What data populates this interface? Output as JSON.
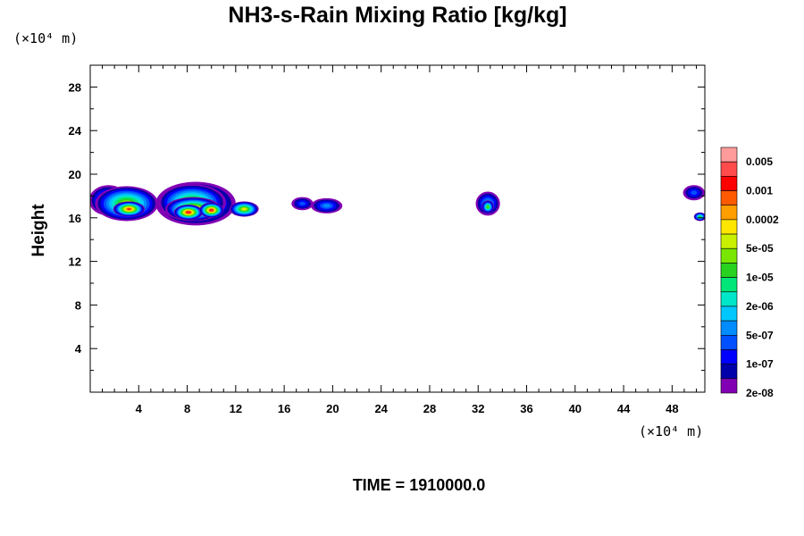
{
  "chart_data": {
    "type": "heatmap",
    "title": "NH3-s-Rain Mixing Ratio [kg/kg]",
    "ylabel": "Height",
    "x_unit": "(×10⁴ m)",
    "y_unit": "(×10⁴ m)",
    "x_ticks": [
      "4",
      "8",
      "12",
      "16",
      "20",
      "24",
      "28",
      "32",
      "36",
      "40",
      "44",
      "48"
    ],
    "y_ticks": [
      "4",
      "8",
      "12",
      "16",
      "20",
      "24",
      "28"
    ],
    "xlim": [
      0,
      50.7
    ],
    "ylim": [
      0,
      30
    ],
    "footer": "TIME = 1910000.0",
    "colorbar": {
      "labels": [
        "0.005",
        "0.001",
        "0.0002",
        "5e-05",
        "1e-05",
        "2e-06",
        "5e-07",
        "1e-07",
        "2e-08"
      ],
      "colors": [
        "#ff9b9b",
        "#ff4b4b",
        "#ff0000",
        "#ff5a00",
        "#ff9e00",
        "#ffe600",
        "#c8f000",
        "#78e600",
        "#28d21e",
        "#00e678",
        "#00e6c8",
        "#00c8ff",
        "#008cff",
        "#0050ff",
        "#0000ff",
        "#0000aa",
        "#8200b4"
      ]
    },
    "blobs": [
      {
        "x": 1.5,
        "y": 17.6,
        "rx": 1.6,
        "ry": 1.4,
        "level": 6
      },
      {
        "x": 3.0,
        "y": 17.3,
        "rx": 2.6,
        "ry": 1.6,
        "level": 10
      },
      {
        "x": 3.2,
        "y": 16.8,
        "rx": 1.3,
        "ry": 0.7,
        "level": 14
      },
      {
        "x": 8.7,
        "y": 17.3,
        "rx": 3.3,
        "ry": 2.0,
        "level": 8
      },
      {
        "x": 8.4,
        "y": 17.4,
        "rx": 2.8,
        "ry": 1.7,
        "level": 10
      },
      {
        "x": 8.5,
        "y": 16.8,
        "rx": 2.3,
        "ry": 1.1,
        "level": 13
      },
      {
        "x": 8.1,
        "y": 16.5,
        "rx": 1.2,
        "ry": 0.7,
        "level": 15
      },
      {
        "x": 10.0,
        "y": 16.7,
        "rx": 1.0,
        "ry": 0.7,
        "level": 15
      },
      {
        "x": 12.7,
        "y": 16.8,
        "rx": 1.2,
        "ry": 0.7,
        "level": 11
      },
      {
        "x": 17.5,
        "y": 17.3,
        "rx": 0.9,
        "ry": 0.6,
        "level": 3
      },
      {
        "x": 19.5,
        "y": 17.1,
        "rx": 1.3,
        "ry": 0.7,
        "level": 4
      },
      {
        "x": 32.8,
        "y": 17.3,
        "rx": 1.0,
        "ry": 1.1,
        "level": 5
      },
      {
        "x": 32.8,
        "y": 17.0,
        "rx": 0.5,
        "ry": 0.6,
        "level": 9
      },
      {
        "x": 49.8,
        "y": 18.3,
        "rx": 0.9,
        "ry": 0.7,
        "level": 3
      },
      {
        "x": 50.3,
        "y": 16.1,
        "rx": 0.5,
        "ry": 0.4,
        "level": 8
      }
    ]
  }
}
